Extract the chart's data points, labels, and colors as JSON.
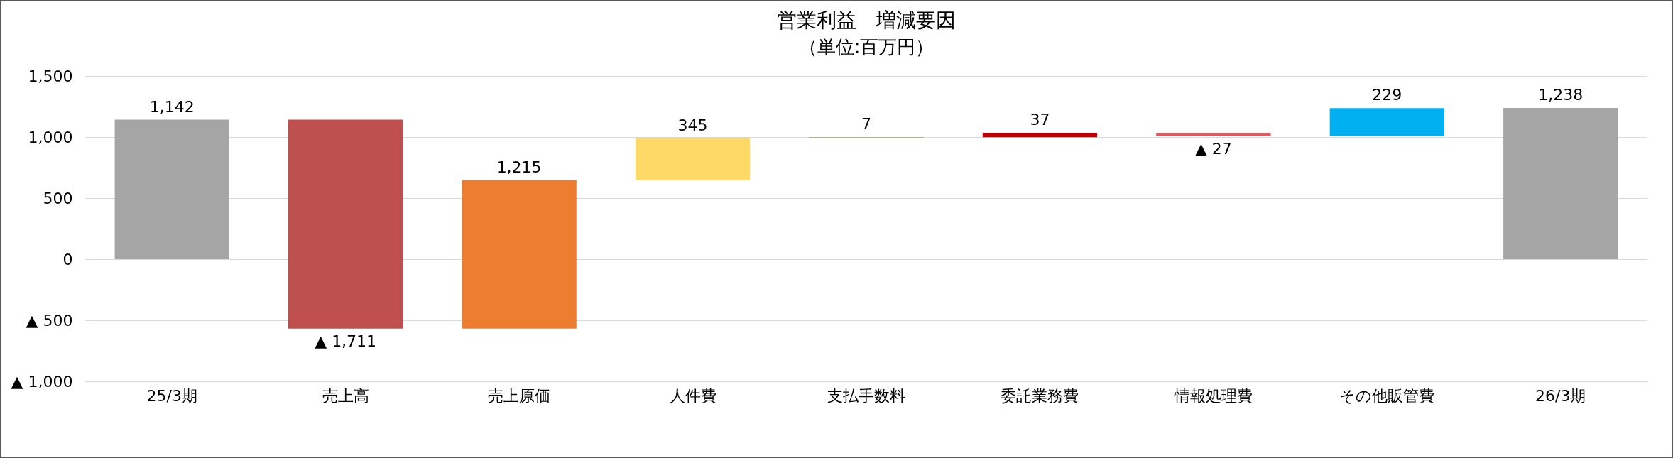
{
  "chart_data": {
    "type": "bar",
    "title": "営業利益　増減要因",
    "subtitle": "（単位:百万円）",
    "categories": [
      "25/3期",
      "売上高",
      "売上原価",
      "人件費",
      "支払手数料",
      "委託業務費",
      "情報処理費",
      "その他販管費",
      "26/3期"
    ],
    "values": [
      1142,
      -1711,
      1215,
      345,
      7,
      37,
      -27,
      229,
      1238
    ],
    "base": [
      0,
      1142,
      -569,
      646,
      991,
      998,
      1035,
      1008,
      0
    ],
    "colors": [
      "#a5a5a5",
      "#c0504d",
      "#ed7d31",
      "#ffd966",
      "#a5a27a",
      "#c00000",
      "#e05a5a",
      "#00b0f0",
      "#a5a5a5"
    ],
    "value_labels": [
      "1,142",
      "▲ 1,711",
      "1,215",
      "345",
      "7",
      "37",
      "▲ 27",
      "229",
      "1,238"
    ],
    "ylim": [
      -1000,
      1500
    ],
    "yticks": [
      {
        "value": -1000,
        "label": "▲ 1,000"
      },
      {
        "value": -500,
        "label": "▲ 500"
      },
      0,
      {
        "value": 500,
        "label": "500"
      },
      {
        "value": 1000,
        "label": "1,000"
      },
      {
        "value": 1500,
        "label": "1,500"
      }
    ],
    "grid": "y"
  }
}
